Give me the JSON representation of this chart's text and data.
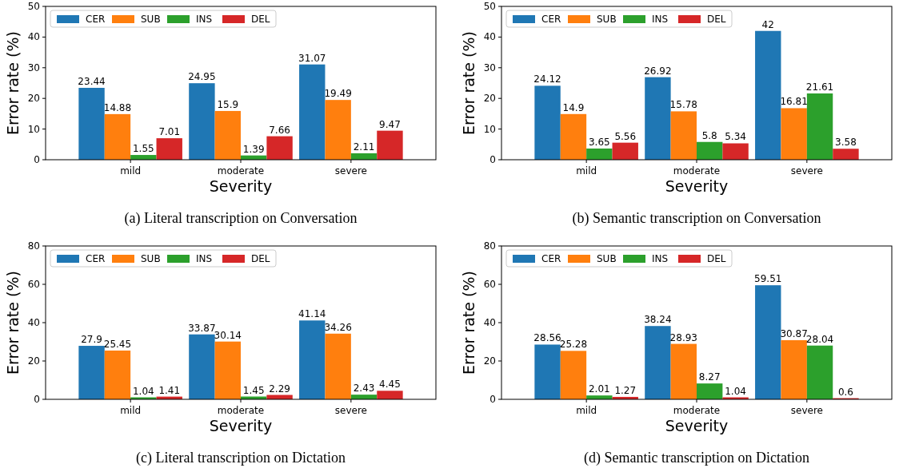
{
  "chart_data": [
    {
      "type": "bar",
      "title": "(a) Literal transcription on Conversation",
      "xlabel": "Severity",
      "ylabel": "Error rate (%)",
      "categories": [
        "mild",
        "moderate",
        "severe"
      ],
      "ylim": [
        0,
        50
      ],
      "yticks": [
        0,
        10,
        20,
        30,
        40,
        50
      ],
      "legend": "top left",
      "data_labels": true,
      "series": [
        {
          "name": "CER",
          "color": "#1f77b4",
          "values": [
            23.44,
            24.95,
            31.07
          ]
        },
        {
          "name": "SUB",
          "color": "#ff7f0e",
          "values": [
            14.88,
            15.9,
            19.49
          ]
        },
        {
          "name": "INS",
          "color": "#2ca02c",
          "values": [
            1.55,
            1.39,
            2.11
          ]
        },
        {
          "name": "DEL",
          "color": "#d62728",
          "values": [
            7.01,
            7.66,
            9.47
          ]
        }
      ]
    },
    {
      "type": "bar",
      "title": "(b) Semantic transcription on Conversation",
      "xlabel": "Severity",
      "ylabel": "Error rate (%)",
      "categories": [
        "mild",
        "moderate",
        "severe"
      ],
      "ylim": [
        0,
        50
      ],
      "yticks": [
        0,
        10,
        20,
        30,
        40,
        50
      ],
      "legend": "top left",
      "data_labels": true,
      "series": [
        {
          "name": "CER",
          "color": "#1f77b4",
          "values": [
            24.12,
            26.92,
            42
          ]
        },
        {
          "name": "SUB",
          "color": "#ff7f0e",
          "values": [
            14.9,
            15.78,
            16.81
          ]
        },
        {
          "name": "INS",
          "color": "#2ca02c",
          "values": [
            3.65,
            5.8,
            21.61
          ]
        },
        {
          "name": "DEL",
          "color": "#d62728",
          "values": [
            5.56,
            5.34,
            3.58
          ]
        }
      ]
    },
    {
      "type": "bar",
      "title": "(c) Literal transcription on Dictation",
      "xlabel": "Severity",
      "ylabel": "Error rate (%)",
      "categories": [
        "mild",
        "moderate",
        "severe"
      ],
      "ylim": [
        0,
        80
      ],
      "yticks": [
        0,
        20,
        40,
        60,
        80
      ],
      "legend": "top left",
      "data_labels": true,
      "series": [
        {
          "name": "CER",
          "color": "#1f77b4",
          "values": [
            27.9,
            33.87,
            41.14
          ]
        },
        {
          "name": "SUB",
          "color": "#ff7f0e",
          "values": [
            25.45,
            30.14,
            34.26
          ]
        },
        {
          "name": "INS",
          "color": "#2ca02c",
          "values": [
            1.04,
            1.45,
            2.43
          ]
        },
        {
          "name": "DEL",
          "color": "#d62728",
          "values": [
            1.41,
            2.29,
            4.45
          ]
        }
      ]
    },
    {
      "type": "bar",
      "title": "(d) Semantic transcription on Dictation",
      "xlabel": "Severity",
      "ylabel": "Error rate (%)",
      "categories": [
        "mild",
        "moderate",
        "severe"
      ],
      "ylim": [
        0,
        80
      ],
      "yticks": [
        0,
        20,
        40,
        60,
        80
      ],
      "legend": "top left",
      "data_labels": true,
      "series": [
        {
          "name": "CER",
          "color": "#1f77b4",
          "values": [
            28.56,
            38.24,
            59.51
          ]
        },
        {
          "name": "SUB",
          "color": "#ff7f0e",
          "values": [
            25.28,
            28.93,
            30.87
          ]
        },
        {
          "name": "INS",
          "color": "#2ca02c",
          "values": [
            2.01,
            8.27,
            28.04
          ]
        },
        {
          "name": "DEL",
          "color": "#d62728",
          "values": [
            1.27,
            1.04,
            0.6
          ]
        }
      ]
    }
  ]
}
